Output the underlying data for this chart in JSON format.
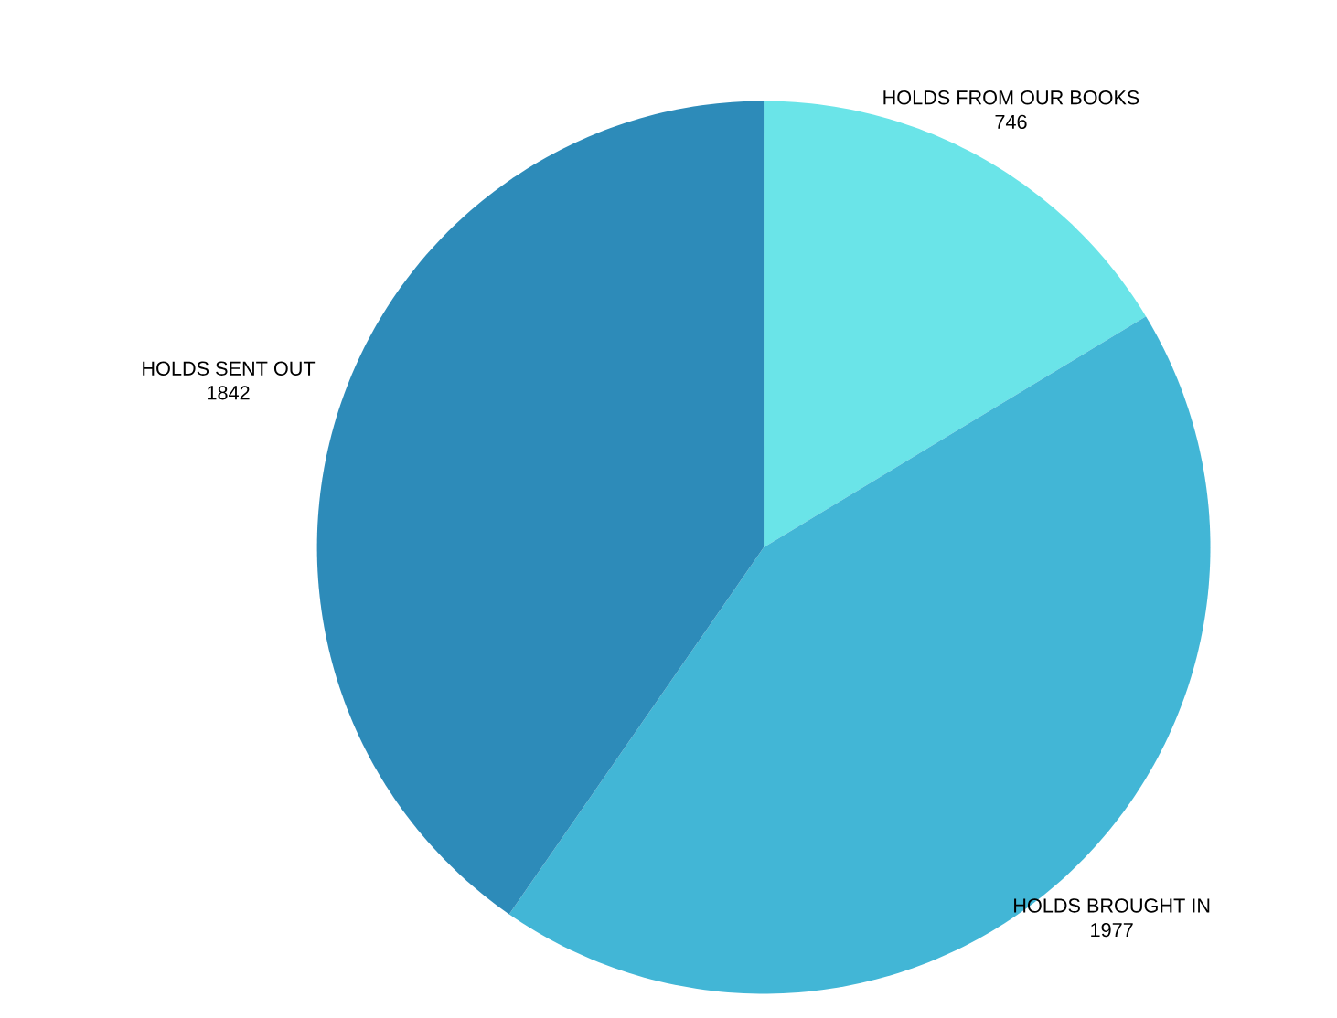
{
  "chart_data": {
    "type": "pie",
    "categories": [
      "HOLDS FROM OUR BOOKS",
      "HOLDS BROUGHT IN",
      "HOLDS SENT OUT"
    ],
    "values": [
      746,
      1977,
      1842
    ],
    "colors": [
      "#6ae4e8",
      "#42b6d6",
      "#2d8bb9"
    ],
    "data_labels": true,
    "legend": false
  }
}
